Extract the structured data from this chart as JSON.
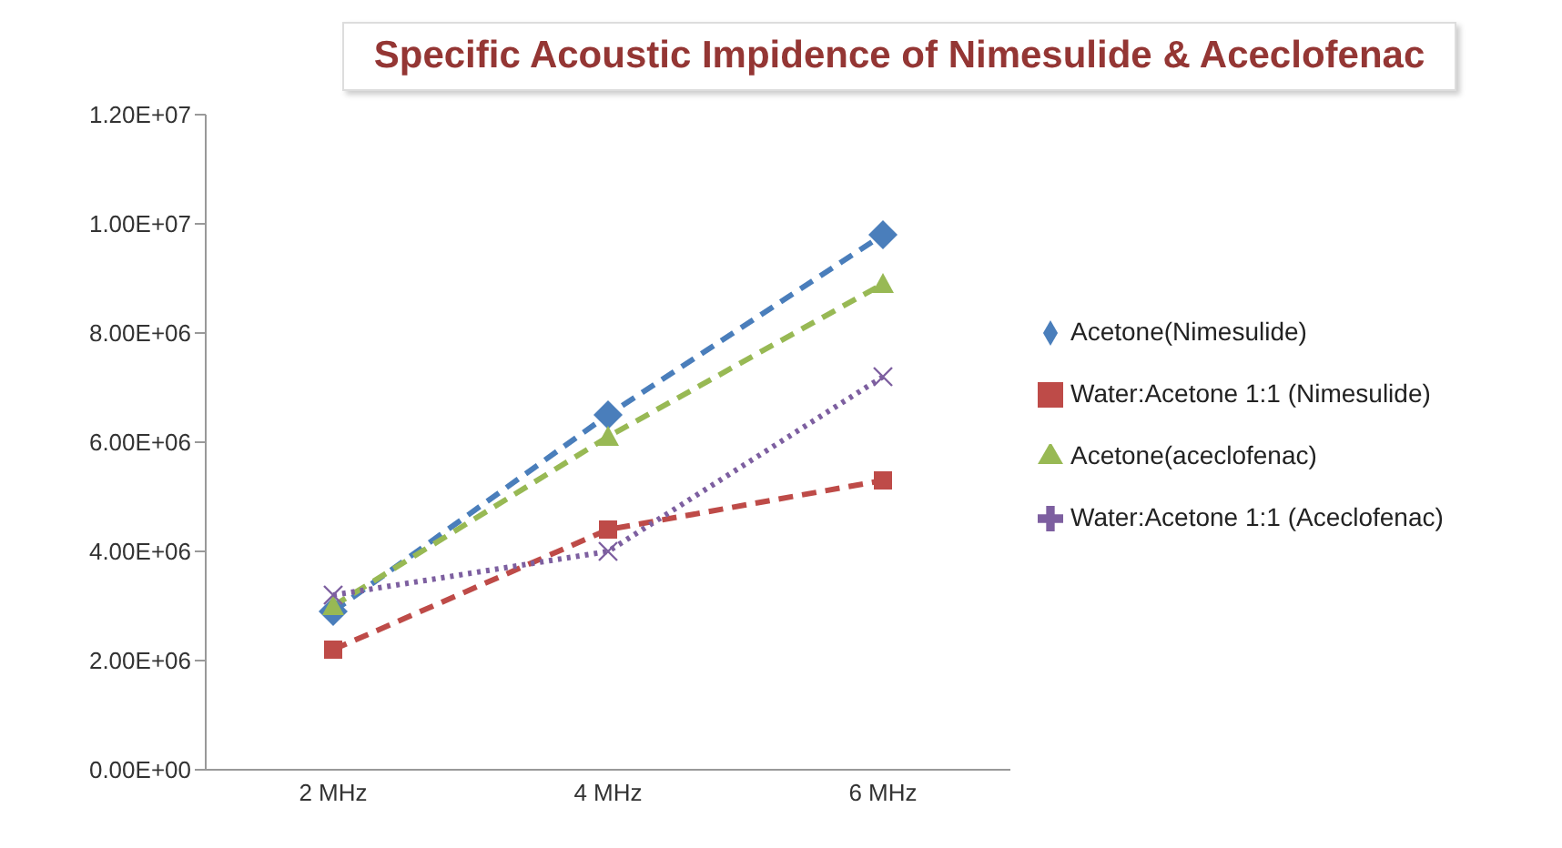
{
  "chart_data": {
    "type": "line",
    "title": "Specific Acoustic Impidence of Nimesulide & Aceclofenac",
    "categories": [
      "2 MHz",
      "4 MHz",
      "6 MHz"
    ],
    "series": [
      {
        "name": "Acetone(Nimesulide)",
        "color": "#4a7ebb",
        "values": [
          2900000,
          6500000,
          9800000
        ],
        "marker": "diamond",
        "line_style": "dashed"
      },
      {
        "name": "Water:Acetone 1:1 (Nimesulide)",
        "color": "#be4b48",
        "values": [
          2200000,
          4400000,
          5300000
        ],
        "marker": "square",
        "line_style": "dashed"
      },
      {
        "name": "Acetone(aceclofenac)",
        "color": "#98b954",
        "values": [
          3000000,
          6100000,
          8900000
        ],
        "marker": "triangle",
        "line_style": "dashed"
      },
      {
        "name": "Water:Acetone 1:1 (Aceclofenac)",
        "color": "#7d5fa0",
        "values": [
          3200000,
          4000000,
          7200000
        ],
        "marker": "cross",
        "line_style": "dotted"
      }
    ],
    "ylim": [
      0,
      12000000
    ],
    "yticks": [
      {
        "value": 0,
        "label": "0.00E+00"
      },
      {
        "value": 2000000,
        "label": "2.00E+06"
      },
      {
        "value": 4000000,
        "label": "4.00E+06"
      },
      {
        "value": 6000000,
        "label": "6.00E+06"
      },
      {
        "value": 8000000,
        "label": "8.00E+06"
      },
      {
        "value": 10000000,
        "label": "1.00E+07"
      },
      {
        "value": 12000000,
        "label": "1.20E+07"
      }
    ],
    "legend": "right"
  }
}
